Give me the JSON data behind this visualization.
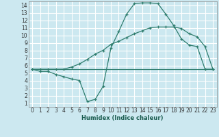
{
  "xlabel": "Humidex (Indice chaleur)",
  "background_color": "#cce8f0",
  "grid_color": "#ffffff",
  "line_color": "#2e7d6e",
  "xlim": [
    -0.5,
    23.5
  ],
  "ylim": [
    0.5,
    14.5
  ],
  "xticks": [
    0,
    1,
    2,
    3,
    4,
    5,
    6,
    7,
    8,
    9,
    10,
    11,
    12,
    13,
    14,
    15,
    16,
    17,
    18,
    19,
    20,
    21,
    22,
    23
  ],
  "yticks": [
    1,
    2,
    3,
    4,
    5,
    6,
    7,
    8,
    9,
    10,
    11,
    12,
    13,
    14
  ],
  "line1_x": [
    0,
    1,
    2,
    3,
    4,
    5,
    6,
    7,
    8,
    9,
    10,
    11,
    12,
    13,
    14,
    15,
    16,
    17,
    18,
    19,
    20,
    21,
    22,
    23
  ],
  "line1_y": [
    5.5,
    5.2,
    5.2,
    4.8,
    4.5,
    4.2,
    4.0,
    1.2,
    1.5,
    3.2,
    8.3,
    10.5,
    12.8,
    14.2,
    14.3,
    14.3,
    14.2,
    12.8,
    11.3,
    9.5,
    8.7,
    8.5,
    5.5,
    5.5
  ],
  "line2_x": [
    0,
    23
  ],
  "line2_y": [
    5.5,
    5.5
  ],
  "line3_x": [
    0,
    1,
    2,
    3,
    4,
    5,
    6,
    7,
    8,
    9,
    10,
    11,
    12,
    13,
    14,
    15,
    16,
    17,
    18,
    19,
    20,
    21,
    22,
    23
  ],
  "line3_y": [
    5.5,
    5.5,
    5.5,
    5.5,
    5.5,
    5.8,
    6.2,
    6.8,
    7.5,
    8.0,
    8.8,
    9.2,
    9.7,
    10.2,
    10.6,
    11.0,
    11.1,
    11.1,
    11.1,
    10.9,
    10.2,
    9.8,
    8.5,
    5.5
  ],
  "xlabel_fontsize": 6.0,
  "tick_fontsize": 5.5
}
